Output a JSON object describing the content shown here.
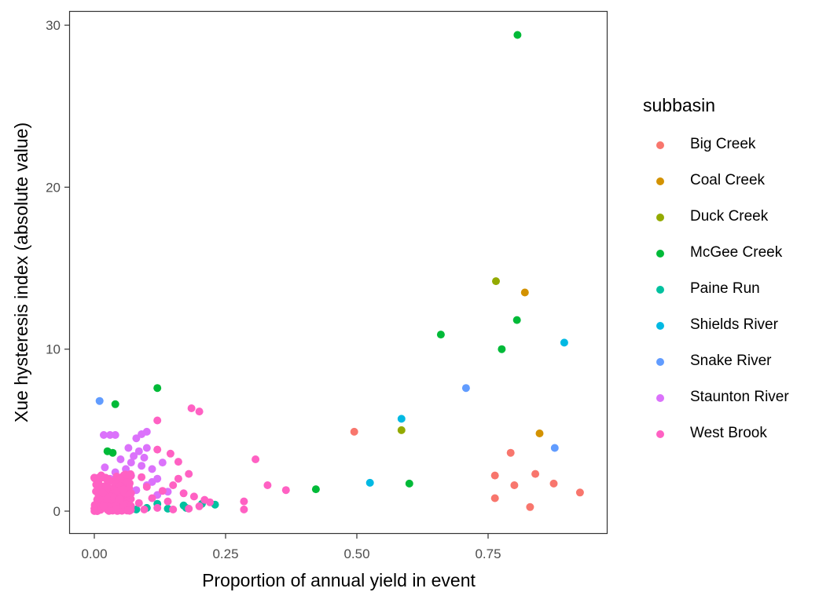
{
  "chart_data": {
    "type": "scatter",
    "title": "",
    "xlabel": "Proportion of annual yield in event",
    "ylabel": "Xue hysteresis index (absolute value)",
    "xlim": [
      -0.04,
      0.98
    ],
    "ylim": [
      -1.4,
      30.9
    ],
    "xticks": [
      0,
      0.25,
      0.5,
      0.75
    ],
    "xtick_labels": [
      "0.00",
      "0.25",
      "0.50",
      "0.75"
    ],
    "yticks": [
      0,
      10,
      20,
      30
    ],
    "ytick_labels": [
      "0",
      "10",
      "20",
      "30"
    ],
    "grid": false,
    "legend": {
      "title": "subbasin",
      "position": "right"
    },
    "series": [
      {
        "name": "Big Creek",
        "color": "#F8766D",
        "points": [
          [
            0.495,
            4.9
          ],
          [
            0.763,
            2.2
          ],
          [
            0.793,
            3.6
          ],
          [
            0.8,
            1.6
          ],
          [
            0.84,
            2.3
          ],
          [
            0.763,
            0.8
          ],
          [
            0.83,
            0.25
          ],
          [
            0.875,
            1.7
          ],
          [
            0.925,
            1.15
          ],
          [
            0.045,
            0.7
          ]
        ]
      },
      {
        "name": "Coal Creek",
        "color": "#D39200",
        "points": [
          [
            0.82,
            13.5
          ],
          [
            0.848,
            4.8
          ]
        ]
      },
      {
        "name": "Duck Creek",
        "color": "#93AA00",
        "points": [
          [
            0.765,
            14.2
          ],
          [
            0.585,
            5.0
          ]
        ]
      },
      {
        "name": "McGee Creek",
        "color": "#00BA38",
        "points": [
          [
            0.806,
            29.4
          ],
          [
            0.12,
            7.6
          ],
          [
            0.04,
            6.6
          ],
          [
            0.66,
            10.9
          ],
          [
            0.805,
            11.8
          ],
          [
            0.776,
            10.0
          ],
          [
            0.025,
            3.7
          ],
          [
            0.035,
            3.6
          ],
          [
            0.422,
            1.35
          ],
          [
            0.6,
            1.7
          ]
        ]
      },
      {
        "name": "Paine Run",
        "color": "#00C19F",
        "points": [
          [
            0.17,
            0.35
          ],
          [
            0.175,
            0.2
          ],
          [
            0.205,
            0.45
          ],
          [
            0.23,
            0.4
          ],
          [
            0.14,
            0.15
          ],
          [
            0.1,
            0.2
          ],
          [
            0.06,
            0.3
          ],
          [
            0.12,
            0.45
          ],
          [
            0.08,
            0.1
          ]
        ]
      },
      {
        "name": "Shields River",
        "color": "#00B9E3",
        "points": [
          [
            0.895,
            10.4
          ],
          [
            0.585,
            5.7
          ],
          [
            0.525,
            1.75
          ]
        ]
      },
      {
        "name": "Snake River",
        "color": "#619CFF",
        "points": [
          [
            0.01,
            6.8
          ],
          [
            0.708,
            7.6
          ],
          [
            0.877,
            3.9
          ]
        ]
      },
      {
        "name": "Staunton River",
        "color": "#DB72FB",
        "points": [
          [
            0.018,
            4.7
          ],
          [
            0.03,
            4.7
          ],
          [
            0.04,
            4.7
          ],
          [
            0.065,
            3.9
          ],
          [
            0.08,
            4.5
          ],
          [
            0.09,
            4.75
          ],
          [
            0.1,
            4.9
          ],
          [
            0.1,
            3.9
          ],
          [
            0.05,
            3.2
          ],
          [
            0.07,
            3.0
          ],
          [
            0.085,
            3.7
          ],
          [
            0.06,
            2.6
          ],
          [
            0.09,
            2.8
          ],
          [
            0.11,
            2.6
          ],
          [
            0.04,
            2.4
          ],
          [
            0.07,
            2.2
          ],
          [
            0.12,
            2.0
          ],
          [
            0.03,
            2.0
          ],
          [
            0.1,
            1.6
          ],
          [
            0.05,
            1.6
          ],
          [
            0.13,
            3.0
          ],
          [
            0.02,
            2.7
          ],
          [
            0.075,
            3.4
          ],
          [
            0.095,
            3.3
          ],
          [
            0.06,
            1.9
          ],
          [
            0.11,
            1.8
          ],
          [
            0.14,
            1.2
          ],
          [
            0.08,
            1.3
          ],
          [
            0.035,
            1.1
          ],
          [
            0.12,
            1.0
          ]
        ]
      },
      {
        "name": "West Brook",
        "color": "#FF61C3",
        "points": [
          [
            0.185,
            6.35
          ],
          [
            0.2,
            6.15
          ],
          [
            0.12,
            5.6
          ],
          [
            0.12,
            3.8
          ],
          [
            0.145,
            3.55
          ],
          [
            0.16,
            3.05
          ],
          [
            0.18,
            2.3
          ],
          [
            0.16,
            2.0
          ],
          [
            0.15,
            1.6
          ],
          [
            0.17,
            1.1
          ],
          [
            0.19,
            0.9
          ],
          [
            0.21,
            0.7
          ],
          [
            0.22,
            0.55
          ],
          [
            0.2,
            0.3
          ],
          [
            0.18,
            0.15
          ],
          [
            0.307,
            3.2
          ],
          [
            0.33,
            1.6
          ],
          [
            0.365,
            1.3
          ],
          [
            0.285,
            0.6
          ],
          [
            0.285,
            0.1
          ],
          [
            0.09,
            2.1
          ],
          [
            0.1,
            1.5
          ],
          [
            0.13,
            1.25
          ],
          [
            0.07,
            1.1
          ],
          [
            0.11,
            0.8
          ],
          [
            0.14,
            0.6
          ],
          [
            0.085,
            0.5
          ],
          [
            0.12,
            0.2
          ],
          [
            0.15,
            0.1
          ],
          [
            0.095,
            0.1
          ]
        ]
      }
    ],
    "dense_cluster": {
      "series": "West Brook",
      "x_range": [
        0.0,
        0.07
      ],
      "y_range": [
        0.0,
        2.3
      ],
      "count": 180
    }
  }
}
